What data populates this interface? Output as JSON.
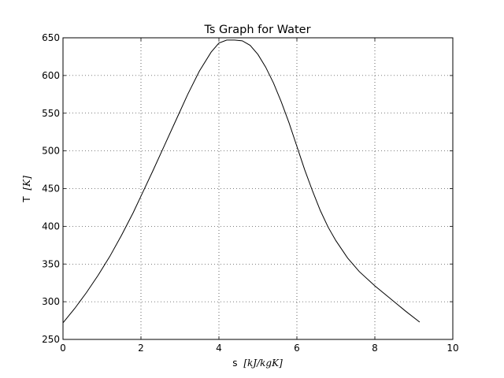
{
  "chart_data": {
    "type": "line",
    "title": "Ts Graph for Water",
    "xlabel": {
      "text": "s",
      "unit": "[kJ/kgK]"
    },
    "ylabel": {
      "text": "T",
      "unit": "[K]"
    },
    "xlim": [
      0,
      10
    ],
    "ylim": [
      250,
      650
    ],
    "xticks": [
      0,
      2,
      4,
      6,
      8,
      10
    ],
    "yticks": [
      250,
      300,
      350,
      400,
      450,
      500,
      550,
      600,
      650
    ],
    "grid": true,
    "legend": "none",
    "line_color": "#000000",
    "series": [
      {
        "x": [
          0.0,
          0.3,
          0.6,
          0.9,
          1.2,
          1.5,
          1.8,
          2.0,
          2.3,
          2.6,
          2.9,
          3.2,
          3.5,
          3.8,
          4.0,
          4.2,
          4.4,
          4.6,
          4.8,
          5.0,
          5.2,
          5.4,
          5.6,
          5.8,
          6.0,
          6.2,
          6.4,
          6.6,
          6.8,
          7.0,
          7.3,
          7.6,
          8.0,
          8.4,
          8.8,
          9.15
        ],
        "y": [
          272,
          291,
          312,
          335,
          360,
          388,
          418,
          440,
          473,
          507,
          541,
          575,
          606,
          631,
          643,
          647,
          647,
          646,
          640,
          628,
          611,
          590,
          565,
          537,
          506,
          475,
          447,
          421,
          399,
          381,
          358,
          340,
          321,
          304,
          287,
          273
        ]
      }
    ]
  }
}
